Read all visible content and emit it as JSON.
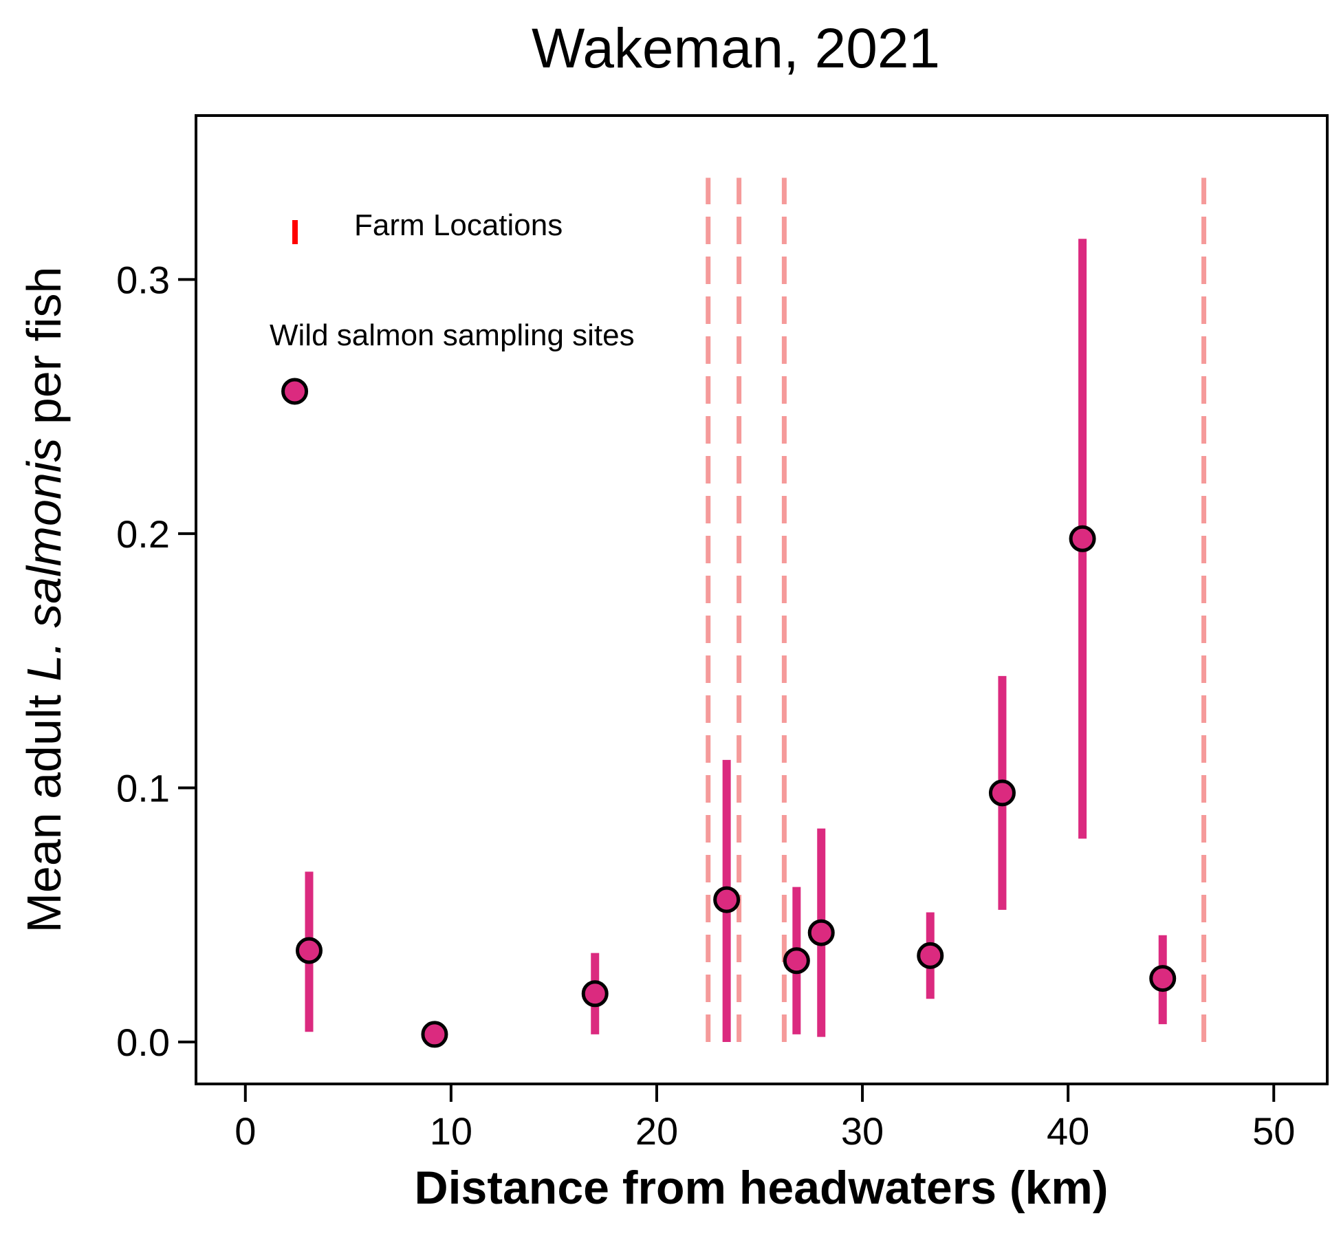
{
  "chart_data": {
    "type": "scatter",
    "title": "Wakeman, 2021",
    "xlabel": "Distance from headwaters (km)",
    "ylabel": {
      "prefix": "Mean adult ",
      "italic": "L. salmonis",
      "suffix": " per fish"
    },
    "xlim": [
      -2.4,
      52.6
    ],
    "ylim": [
      -0.0165,
      0.3645
    ],
    "x_ticks": [
      0,
      10,
      20,
      30,
      40,
      50
    ],
    "y_ticks": [
      0.0,
      0.1,
      0.2,
      0.3
    ],
    "x_tick_labels": [
      "0",
      "10",
      "20",
      "30",
      "40",
      "50"
    ],
    "y_tick_labels": [
      "0.0",
      "0.1",
      "0.2",
      "0.3"
    ],
    "legend": {
      "placement": "top-left",
      "farm_label": "Farm Locations",
      "site_label": "Wild salmon sampling sites"
    },
    "farm_locations": {
      "name": "Farm Locations",
      "color": "#f59a9a",
      "legend_color": "#ff0000",
      "x": [
        22.5,
        24.0,
        26.2,
        46.6
      ],
      "y_range": [
        0.0,
        0.34
      ]
    },
    "series": [
      {
        "name": "Wild salmon sampling sites",
        "color": "#db2a7f",
        "edge_color": "#000000",
        "x": [
          2.4,
          3.1,
          9.2,
          17.0,
          23.4,
          26.8,
          28.0,
          33.3,
          36.8,
          40.7,
          44.6
        ],
        "y": [
          0.256,
          0.036,
          0.003,
          0.019,
          0.056,
          0.032,
          0.043,
          0.034,
          0.098,
          0.198,
          0.025
        ],
        "err_low": [
          null,
          0.004,
          null,
          0.003,
          0.0,
          0.003,
          0.002,
          0.017,
          0.052,
          0.08,
          0.007
        ],
        "err_high": [
          null,
          0.067,
          null,
          0.035,
          0.111,
          0.061,
          0.084,
          0.051,
          0.144,
          0.316,
          0.042
        ]
      }
    ],
    "grid": false
  }
}
